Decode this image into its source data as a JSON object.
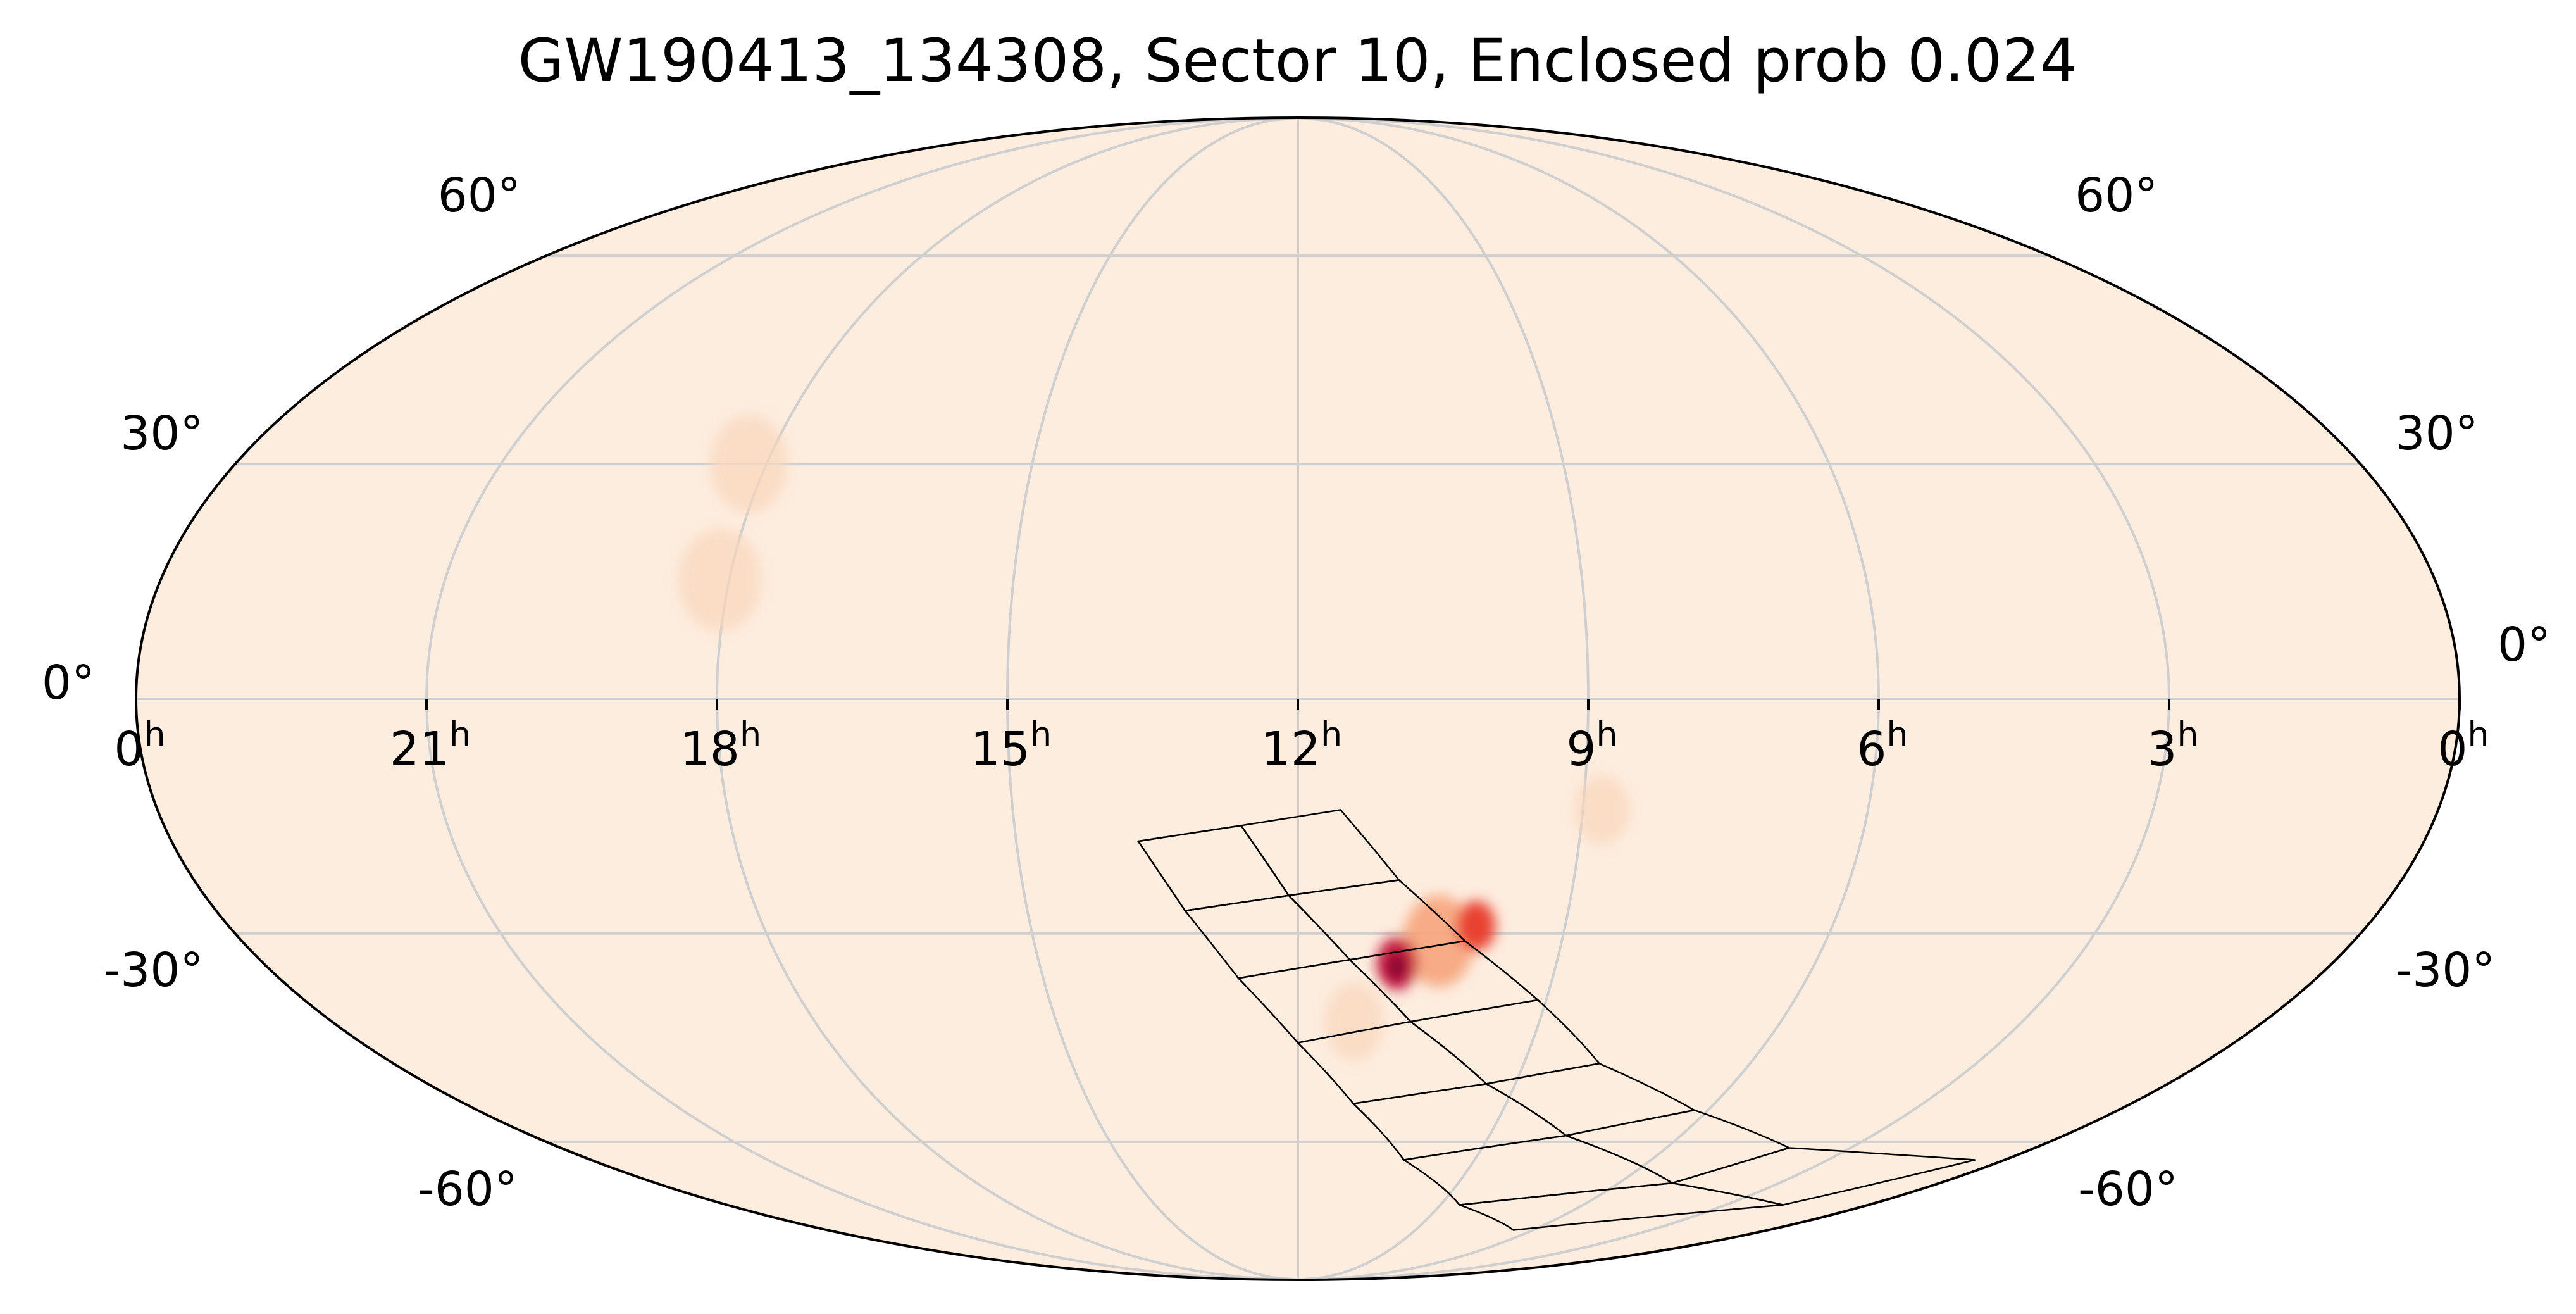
{
  "chart_data": {
    "type": "heatmap",
    "projection": "mollweide",
    "title": "GW190413_134308, Sector 10, Enclosed prob 0.024",
    "colors": {
      "background": "#fdeddf",
      "grid": "#cfcfcf",
      "outline": "#000000",
      "hot": "#e84332",
      "hotter": "#c4123d",
      "hottest": "#7a0a30"
    },
    "ra_ticks": [
      {
        "ra_hours": 24,
        "label": "0",
        "unit": "h"
      },
      {
        "ra_hours": 21,
        "label": "21",
        "unit": "h"
      },
      {
        "ra_hours": 18,
        "label": "18",
        "unit": "h"
      },
      {
        "ra_hours": 15,
        "label": "15",
        "unit": "h"
      },
      {
        "ra_hours": 12,
        "label": "12",
        "unit": "h"
      },
      {
        "ra_hours": 9,
        "label": "9",
        "unit": "h"
      },
      {
        "ra_hours": 6,
        "label": "6",
        "unit": "h"
      },
      {
        "ra_hours": 3,
        "label": "3",
        "unit": "h"
      },
      {
        "ra_hours": 0,
        "label": "0",
        "unit": "h"
      }
    ],
    "dec_ticks": [
      {
        "dec_deg": 60,
        "label": "60°"
      },
      {
        "dec_deg": 30,
        "label": "30°"
      },
      {
        "dec_deg": 0,
        "label": "0°"
      },
      {
        "dec_deg": -30,
        "label": "-30°"
      },
      {
        "dec_deg": -60,
        "label": "-60°"
      }
    ],
    "probability_blobs": [
      {
        "ra_hours": 10.85,
        "dec_deg": -34,
        "sigma_deg": 3.2,
        "level": 1.0
      },
      {
        "ra_hours": 10.0,
        "dec_deg": -29,
        "sigma_deg": 3.0,
        "level": 0.85
      },
      {
        "ra_hours": 10.4,
        "dec_deg": -31,
        "sigma_deg": 5.5,
        "level": 0.35
      },
      {
        "ra_hours": 8.8,
        "dec_deg": -14,
        "sigma_deg": 4,
        "level": 0.05
      },
      {
        "ra_hours": 11.3,
        "dec_deg": -42,
        "sigma_deg": 5,
        "level": 0.05
      },
      {
        "ra_hours": 18.2,
        "dec_deg": 30,
        "sigma_deg": 6,
        "level": 0.04
      },
      {
        "ra_hours": 18.1,
        "dec_deg": 15,
        "sigma_deg": 6,
        "level": 0.04
      }
    ],
    "footprint_ccds": [
      [
        [
          13.7,
          -18
        ],
        [
          12.6,
          -16
        ],
        [
          12.1,
          -25
        ],
        [
          13.25,
          -27
        ]
      ],
      [
        [
          12.6,
          -16
        ],
        [
          11.55,
          -14
        ],
        [
          10.9,
          -23
        ],
        [
          12.1,
          -25
        ]
      ],
      [
        [
          13.25,
          -27
        ],
        [
          12.1,
          -25
        ],
        [
          11.4,
          -33.5
        ],
        [
          12.7,
          -36
        ]
      ],
      [
        [
          12.1,
          -25
        ],
        [
          10.9,
          -23
        ],
        [
          10.1,
          -31
        ],
        [
          11.4,
          -33.5
        ]
      ],
      [
        [
          12.7,
          -36
        ],
        [
          11.4,
          -33.5
        ],
        [
          10.6,
          -42
        ],
        [
          12.0,
          -45
        ]
      ],
      [
        [
          11.4,
          -33.5
        ],
        [
          10.1,
          -31
        ],
        [
          9.1,
          -39
        ],
        [
          10.6,
          -42
        ]
      ],
      [
        [
          12.0,
          -45
        ],
        [
          10.6,
          -42
        ],
        [
          9.4,
          -51
        ],
        [
          11.2,
          -54
        ]
      ],
      [
        [
          10.6,
          -42
        ],
        [
          9.1,
          -39
        ],
        [
          8.0,
          -48
        ],
        [
          9.4,
          -51
        ]
      ],
      [
        [
          11.2,
          -54
        ],
        [
          9.4,
          -51
        ],
        [
          7.8,
          -59
        ],
        [
          10.2,
          -63
        ]
      ],
      [
        [
          9.4,
          -51
        ],
        [
          8.0,
          -48
        ],
        [
          6.2,
          -55
        ],
        [
          7.8,
          -59
        ]
      ],
      [
        [
          10.2,
          -63
        ],
        [
          7.8,
          -59
        ],
        [
          5.0,
          -67
        ],
        [
          8.6,
          -71
        ]
      ],
      [
        [
          7.8,
          -59
        ],
        [
          6.2,
          -55
        ],
        [
          4.0,
          -61
        ],
        [
          5.0,
          -67
        ]
      ],
      [
        [
          8.6,
          -71
        ],
        [
          5.0,
          -67
        ],
        [
          1.8,
          -71
        ],
        [
          6.5,
          -76
        ]
      ],
      [
        [
          5.0,
          -67
        ],
        [
          4.0,
          -61
        ],
        [
          0.5,
          -63
        ],
        [
          1.8,
          -71
        ]
      ],
      [
        [
          13.25,
          -27
        ],
        [
          13.7,
          -18
        ],
        [
          12.6,
          -16
        ],
        [
          12.1,
          -25
        ]
      ]
    ]
  }
}
